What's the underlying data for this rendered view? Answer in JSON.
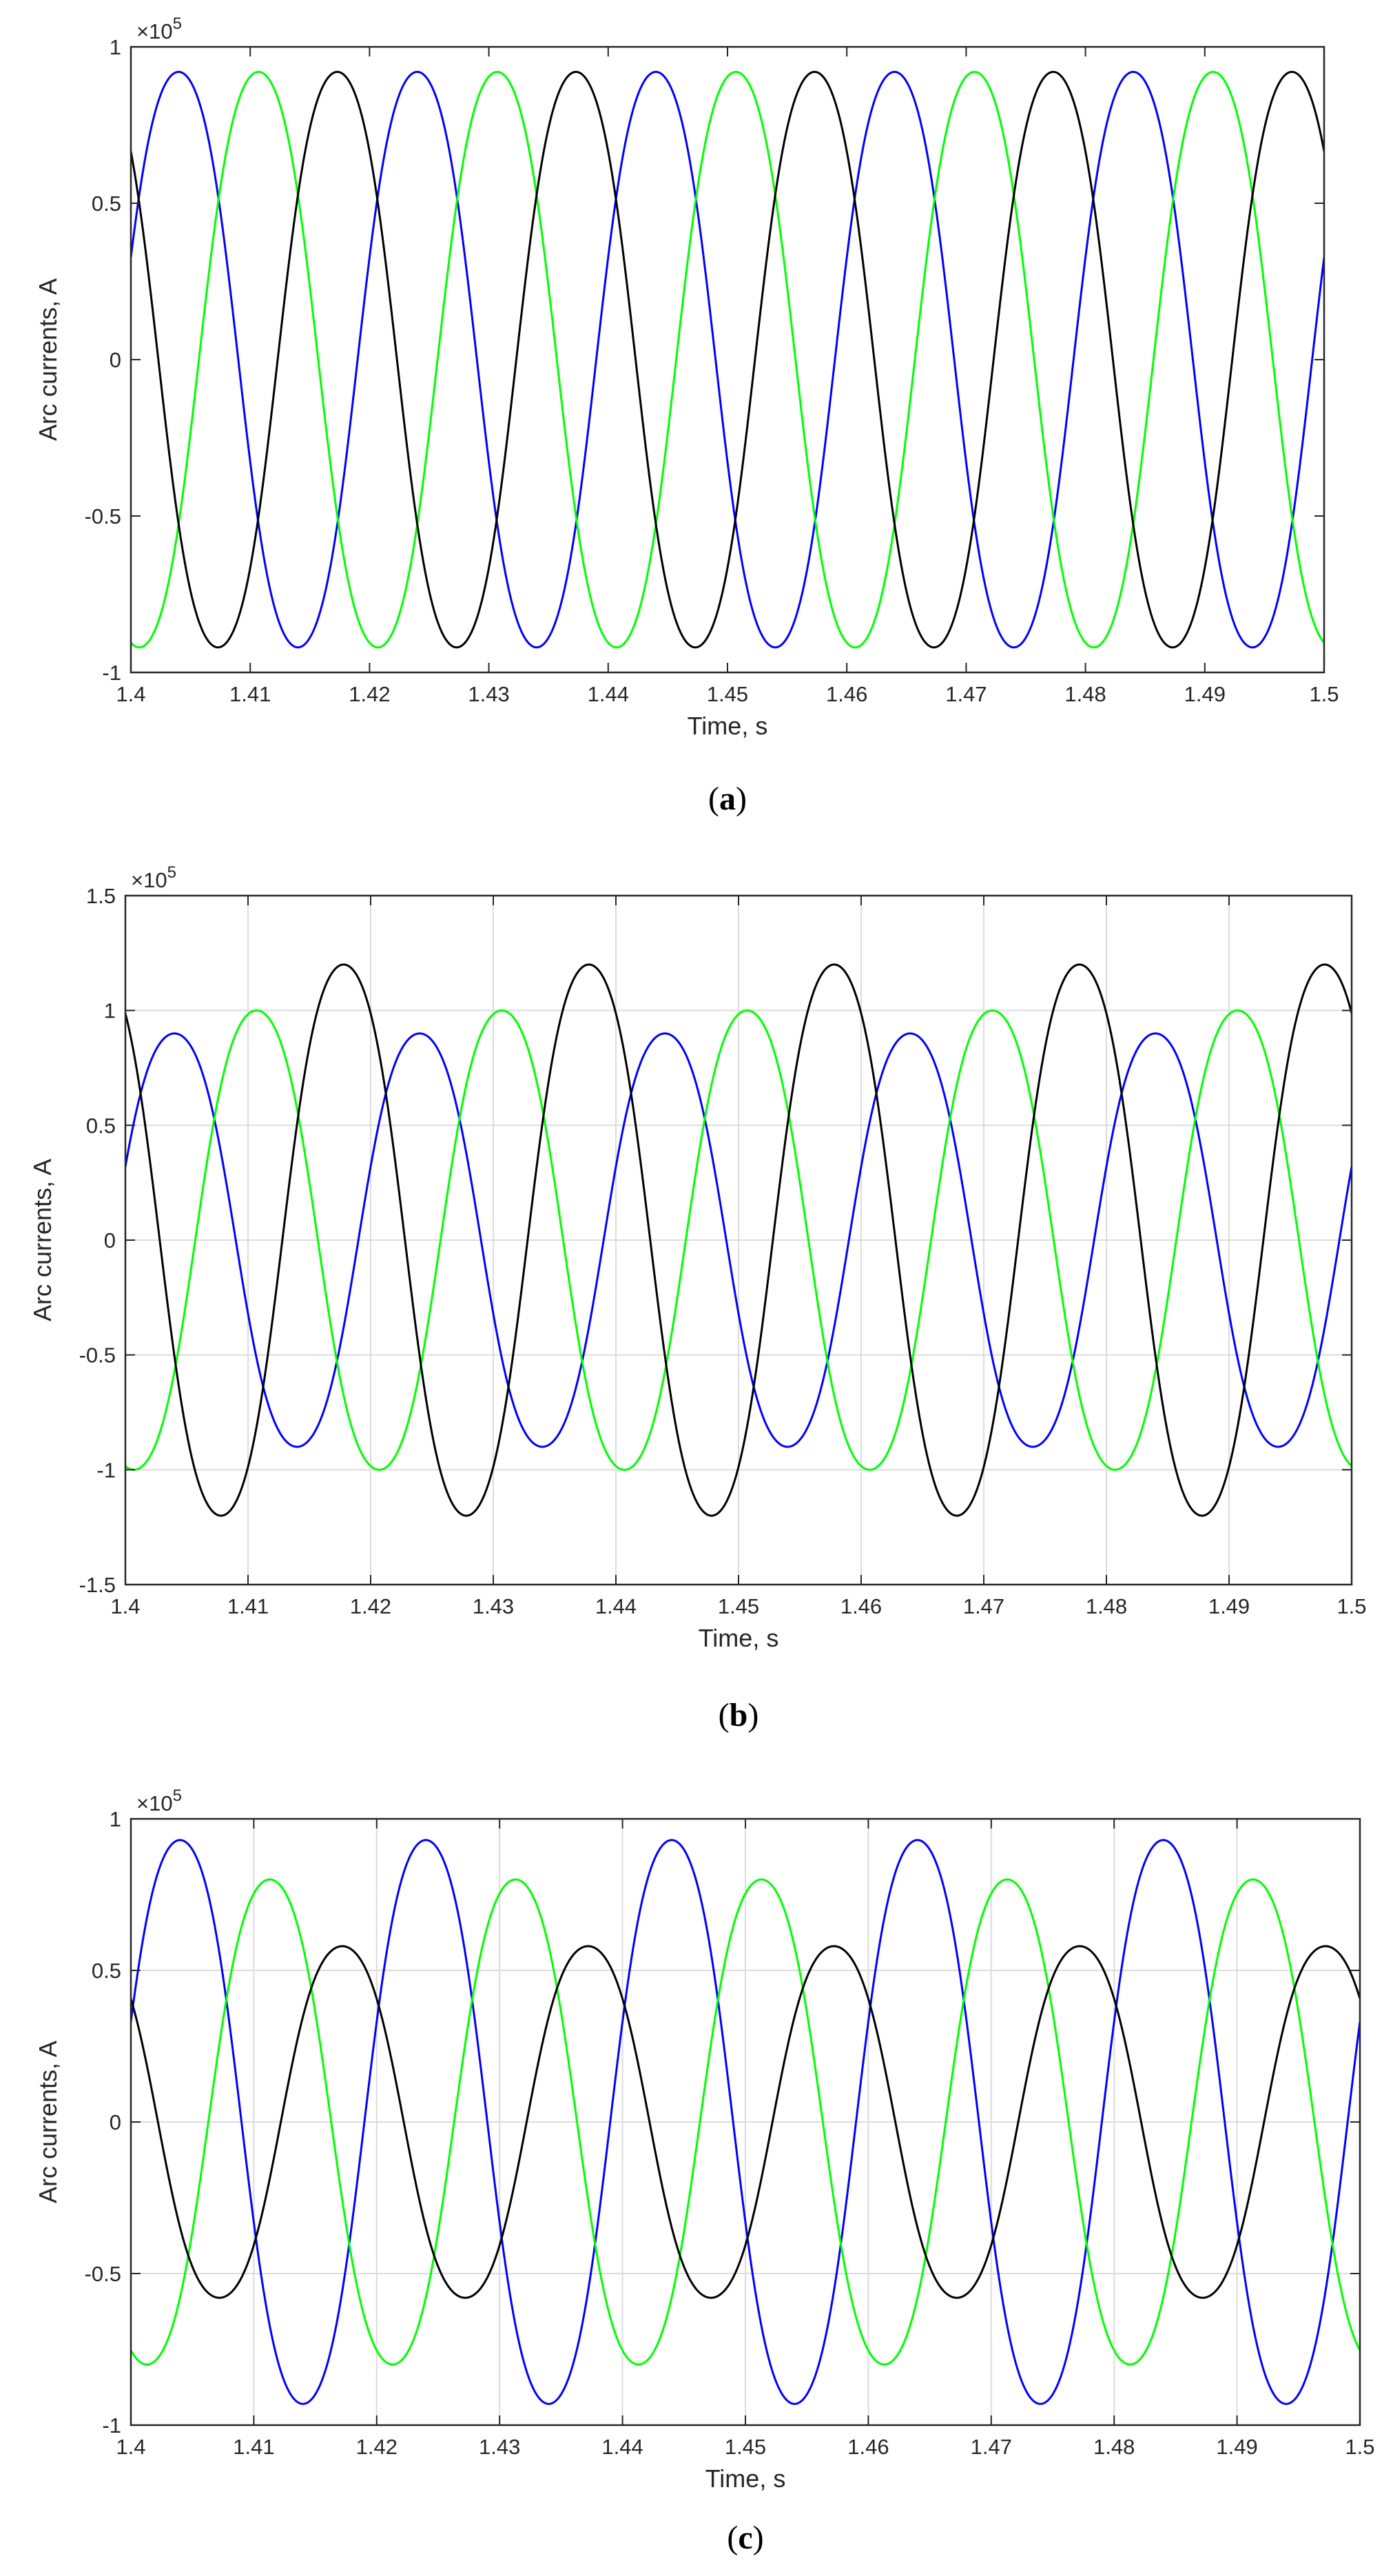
{
  "chart_data": [
    {
      "type": "line",
      "panel": "a",
      "caption": {
        "open": "(",
        "letter": "a",
        "close": ")"
      },
      "xlabel": "Time, s",
      "ylabel": "Arc currents, A",
      "exponent_label": "×10",
      "exponent_power": "5",
      "xlim": [
        1.4,
        1.5
      ],
      "ylim": [
        -100000,
        100000
      ],
      "xticks": [
        1.4,
        1.41,
        1.42,
        1.43,
        1.44,
        1.45,
        1.46,
        1.47,
        1.48,
        1.49,
        1.5
      ],
      "xtick_labels": [
        "1.4",
        "1.41",
        "1.42",
        "1.43",
        "1.44",
        "1.45",
        "1.46",
        "1.47",
        "1.48",
        "1.49",
        "1.5"
      ],
      "yticks": [
        -100000,
        -50000,
        0,
        50000,
        100000
      ],
      "ytick_labels": [
        "-1",
        "-0.5",
        "0",
        "0.5",
        "1"
      ],
      "grid": false,
      "frequency_hz": 50,
      "series": [
        {
          "color": "#0000ff",
          "amplitude": 92000,
          "peak_time": 1.404
        },
        {
          "color": "#00ff00",
          "amplitude": 92000,
          "peak_time": 1.4107
        },
        {
          "color": "#000000",
          "amplitude": 92000,
          "peak_time": 1.4173
        }
      ]
    },
    {
      "type": "line",
      "panel": "b",
      "caption": {
        "open": "(",
        "letter": "b",
        "close": ")"
      },
      "xlabel": "Time, s",
      "ylabel": "Arc currents, A",
      "exponent_label": "×10",
      "exponent_power": "5",
      "xlim": [
        1.4,
        1.5
      ],
      "ylim": [
        -150000,
        150000
      ],
      "xticks": [
        1.4,
        1.41,
        1.42,
        1.43,
        1.44,
        1.45,
        1.46,
        1.47,
        1.48,
        1.49,
        1.5
      ],
      "xtick_labels": [
        "1.4",
        "1.41",
        "1.42",
        "1.43",
        "1.44",
        "1.45",
        "1.46",
        "1.47",
        "1.48",
        "1.49",
        "1.5"
      ],
      "yticks": [
        -150000,
        -100000,
        -50000,
        0,
        50000,
        100000,
        150000
      ],
      "ytick_labels": [
        "-1.5",
        "-1",
        "-0.5",
        "0",
        "0.5",
        "1",
        "1.5"
      ],
      "grid": true,
      "frequency_hz": 50,
      "series": [
        {
          "color": "#0000ff",
          "amplitude": 90000,
          "peak_time": 1.404
        },
        {
          "color": "#00ff00",
          "amplitude": 100000,
          "peak_time": 1.4107
        },
        {
          "color": "#000000",
          "amplitude": 120000,
          "peak_time": 1.4178
        }
      ]
    },
    {
      "type": "line",
      "panel": "c",
      "caption": {
        "open": "(",
        "letter": "c",
        "close": ")"
      },
      "xlabel": "Time, s",
      "ylabel": "Arc currents, A",
      "exponent_label": "×10",
      "exponent_power": "5",
      "xlim": [
        1.4,
        1.5
      ],
      "ylim": [
        -100000,
        100000
      ],
      "xticks": [
        1.4,
        1.41,
        1.42,
        1.43,
        1.44,
        1.45,
        1.46,
        1.47,
        1.48,
        1.49,
        1.5
      ],
      "xtick_labels": [
        "1.4",
        "1.41",
        "1.42",
        "1.43",
        "1.44",
        "1.45",
        "1.46",
        "1.47",
        "1.48",
        "1.49",
        "1.5"
      ],
      "yticks": [
        -100000,
        -50000,
        0,
        50000,
        100000
      ],
      "ytick_labels": [
        "-1",
        "-0.5",
        "0",
        "0.5",
        "1"
      ],
      "grid": true,
      "frequency_hz": 50,
      "series": [
        {
          "color": "#0000ff",
          "amplitude": 93000,
          "peak_time": 1.404
        },
        {
          "color": "#00ff00",
          "amplitude": 80000,
          "peak_time": 1.4113
        },
        {
          "color": "#000000",
          "amplitude": 58000,
          "peak_time": 1.4172
        }
      ]
    }
  ]
}
